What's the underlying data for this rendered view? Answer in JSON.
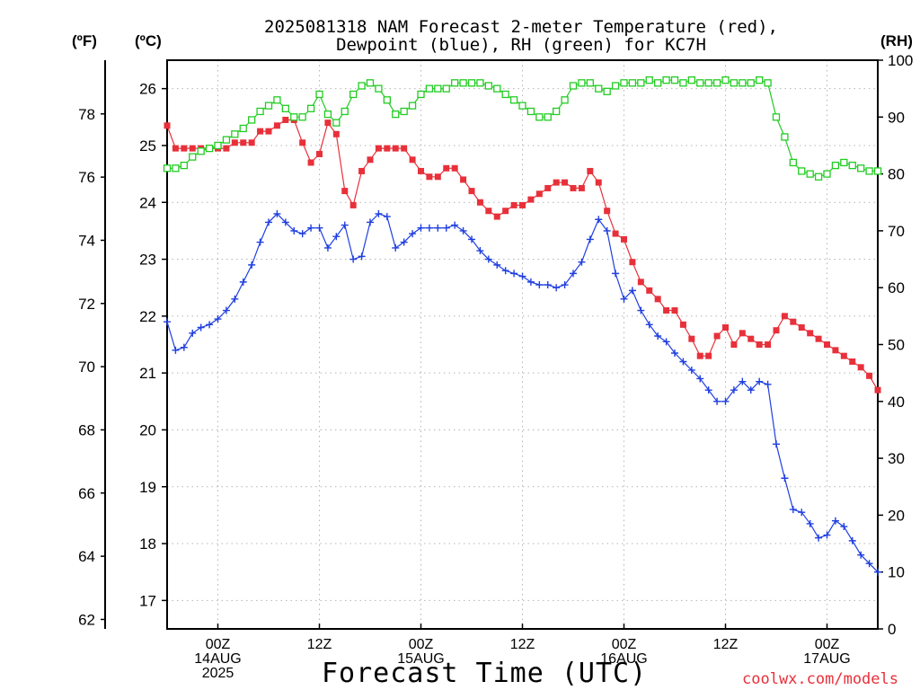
{
  "header": {
    "title_line1": "2025081318 NAM Forecast 2-meter Temperature (red),",
    "title_line2": "Dewpoint (blue), RH (green) for KC7H"
  },
  "units": {
    "fahrenheit": "(ºF)",
    "celsius": "(ºC)",
    "rh": "(RH)"
  },
  "footer": {
    "xlabel": "Forecast Time (UTC)",
    "credit": "coolwx.com/models"
  },
  "colors": {
    "temperature": "#e8303a",
    "dewpoint": "#1f3fe0",
    "rh": "#22cc22",
    "grid": "#b4b4b4"
  },
  "chart_data": {
    "type": "line",
    "title": "2025081318 NAM Forecast 2-meter Temperature (red), Dewpoint (blue), RH (green) for KC7H",
    "xlabel": "Forecast Time (UTC)",
    "ylabel_left_outer": "(ºF)",
    "ylabel_left_inner": "(ºC)",
    "ylabel_right": "(RH)",
    "x_unit": "forecast hour from 2025-08-13 18Z",
    "x_range": [
      0,
      84
    ],
    "x_ticks": [
      {
        "hour": 6,
        "lines": [
          "00Z",
          "14AUG",
          "2025"
        ]
      },
      {
        "hour": 18,
        "lines": [
          "12Z"
        ]
      },
      {
        "hour": 30,
        "lines": [
          "00Z",
          "15AUG"
        ]
      },
      {
        "hour": 42,
        "lines": [
          "12Z"
        ]
      },
      {
        "hour": 54,
        "lines": [
          "00Z",
          "16AUG"
        ]
      },
      {
        "hour": 66,
        "lines": [
          "12Z"
        ]
      },
      {
        "hour": 78,
        "lines": [
          "00Z",
          "17AUG"
        ]
      }
    ],
    "celsius_axis": {
      "range": [
        16.5,
        26.5
      ],
      "ticks": [
        17,
        18,
        19,
        20,
        21,
        22,
        23,
        24,
        25,
        26
      ]
    },
    "fahrenheit_axis": {
      "range": [
        61.7,
        79.7
      ],
      "ticks": [
        62,
        64,
        66,
        68,
        70,
        72,
        74,
        76,
        78
      ]
    },
    "rh_axis": {
      "range": [
        0,
        100
      ],
      "ticks": [
        0,
        10,
        20,
        30,
        40,
        50,
        60,
        70,
        80,
        90,
        100
      ]
    },
    "grid": true,
    "series": [
      {
        "name": "Temperature (red)",
        "axis": "celsius",
        "marker": "filled-square",
        "x": [
          0,
          1,
          2,
          3,
          4,
          5,
          6,
          7,
          8,
          9,
          10,
          11,
          12,
          13,
          14,
          15,
          16,
          17,
          18,
          19,
          20,
          21,
          22,
          23,
          24,
          25,
          26,
          27,
          28,
          29,
          30,
          31,
          32,
          33,
          34,
          35,
          36,
          37,
          38,
          39,
          40,
          41,
          42,
          43,
          44,
          45,
          46,
          47,
          48,
          49,
          50,
          51,
          52,
          53,
          54,
          55,
          56,
          57,
          58,
          59,
          60,
          61,
          62,
          63,
          64,
          65,
          66,
          67,
          68,
          69,
          70,
          71,
          72,
          73,
          74,
          75,
          76,
          77,
          78,
          79,
          80,
          81,
          82,
          83,
          84
        ],
        "values": [
          25.35,
          24.95,
          24.95,
          24.95,
          24.95,
          24.95,
          24.95,
          24.95,
          25.05,
          25.05,
          25.05,
          25.25,
          25.25,
          25.35,
          25.45,
          25.45,
          25.05,
          24.7,
          24.85,
          25.4,
          25.2,
          24.2,
          23.95,
          24.55,
          24.75,
          24.95,
          24.95,
          24.95,
          24.95,
          24.75,
          24.55,
          24.45,
          24.45,
          24.6,
          24.6,
          24.4,
          24.2,
          24.0,
          23.85,
          23.75,
          23.85,
          23.95,
          23.95,
          24.05,
          24.15,
          24.25,
          24.35,
          24.35,
          24.25,
          24.25,
          24.55,
          24.35,
          23.85,
          23.45,
          23.35,
          22.95,
          22.6,
          22.45,
          22.3,
          22.1,
          22.1,
          21.85,
          21.6,
          21.3,
          21.3,
          21.65,
          21.8,
          21.5,
          21.7,
          21.6,
          21.5,
          21.5,
          21.75,
          22.0,
          21.9,
          21.8,
          21.7,
          21.6,
          21.5,
          21.4,
          21.3,
          21.2,
          21.1,
          20.95,
          20.7
        ]
      },
      {
        "name": "Dewpoint (blue)",
        "axis": "celsius",
        "marker": "plus",
        "x": [
          0,
          1,
          2,
          3,
          4,
          5,
          6,
          7,
          8,
          9,
          10,
          11,
          12,
          13,
          14,
          15,
          16,
          17,
          18,
          19,
          20,
          21,
          22,
          23,
          24,
          25,
          26,
          27,
          28,
          29,
          30,
          31,
          32,
          33,
          34,
          35,
          36,
          37,
          38,
          39,
          40,
          41,
          42,
          43,
          44,
          45,
          46,
          47,
          48,
          49,
          50,
          51,
          52,
          53,
          54,
          55,
          56,
          57,
          58,
          59,
          60,
          61,
          62,
          63,
          64,
          65,
          66,
          67,
          68,
          69,
          70,
          71,
          72,
          73,
          74,
          75,
          76,
          77,
          78,
          79,
          80,
          81,
          82,
          83,
          84
        ],
        "values": [
          21.9,
          21.4,
          21.45,
          21.7,
          21.8,
          21.85,
          21.95,
          22.1,
          22.3,
          22.6,
          22.9,
          23.3,
          23.65,
          23.8,
          23.65,
          23.5,
          23.45,
          23.55,
          23.55,
          23.2,
          23.4,
          23.6,
          23.0,
          23.05,
          23.65,
          23.8,
          23.75,
          23.2,
          23.3,
          23.45,
          23.55,
          23.55,
          23.55,
          23.55,
          23.6,
          23.5,
          23.35,
          23.15,
          23.0,
          22.9,
          22.8,
          22.75,
          22.7,
          22.6,
          22.55,
          22.55,
          22.5,
          22.55,
          22.75,
          22.95,
          23.35,
          23.7,
          23.5,
          22.75,
          22.3,
          22.45,
          22.1,
          21.85,
          21.65,
          21.55,
          21.35,
          21.2,
          21.05,
          20.9,
          20.7,
          20.5,
          20.5,
          20.7,
          20.85,
          20.7,
          20.85,
          20.8,
          19.75,
          19.15,
          18.6,
          18.55,
          18.35,
          18.1,
          18.15,
          18.4,
          18.3,
          18.05,
          17.8,
          17.65,
          17.5
        ]
      },
      {
        "name": "RH (green)",
        "axis": "rh",
        "marker": "open-square",
        "x": [
          0,
          1,
          2,
          3,
          4,
          5,
          6,
          7,
          8,
          9,
          10,
          11,
          12,
          13,
          14,
          15,
          16,
          17,
          18,
          19,
          20,
          21,
          22,
          23,
          24,
          25,
          26,
          27,
          28,
          29,
          30,
          31,
          32,
          33,
          34,
          35,
          36,
          37,
          38,
          39,
          40,
          41,
          42,
          43,
          44,
          45,
          46,
          47,
          48,
          49,
          50,
          51,
          52,
          53,
          54,
          55,
          56,
          57,
          58,
          59,
          60,
          61,
          62,
          63,
          64,
          65,
          66,
          67,
          68,
          69,
          70,
          71,
          72,
          73,
          74,
          75,
          76,
          77,
          78,
          79,
          80,
          81,
          82,
          83,
          84
        ],
        "values": [
          81,
          81,
          81.5,
          83,
          84,
          84.5,
          85,
          86,
          87,
          88,
          89.5,
          91,
          92,
          93,
          91.5,
          90,
          90,
          91.5,
          94,
          90.5,
          89,
          91,
          94,
          95.5,
          96,
          95,
          93,
          90.5,
          91,
          92,
          94,
          95,
          95,
          95,
          96,
          96,
          96,
          96,
          95.5,
          95,
          94,
          93,
          92,
          91,
          90,
          90,
          91,
          93,
          95.5,
          96,
          96,
          95,
          94.5,
          95.5,
          96,
          96,
          96,
          96.5,
          96,
          96.5,
          96.5,
          96,
          96.5,
          96,
          96,
          96,
          96.5,
          96,
          96,
          96,
          96.5,
          96,
          90,
          86.5,
          82,
          80.5,
          80,
          79.5,
          80,
          81.5,
          82,
          81.5,
          81,
          80.5,
          80.5
        ]
      }
    ]
  }
}
